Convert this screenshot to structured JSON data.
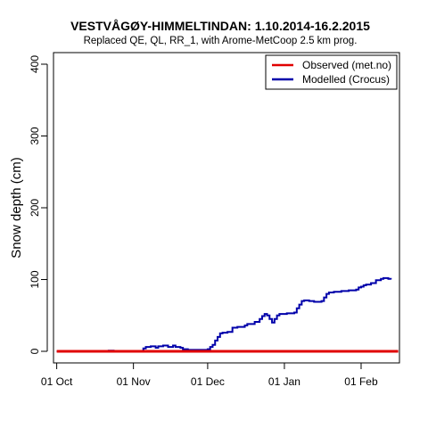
{
  "chart_data": {
    "type": "line",
    "title": "VESTVÅGØY-HIMMELTINDAN: 1.10.2014-16.2.2015",
    "subtitle": "Replaced QE, QL, RR_1,  with Arome-MetCoop 2.5 km prog.",
    "xlabel": "",
    "ylabel": "Snow depth (cm)",
    "ylim": [
      0,
      400
    ],
    "y_ticks": [
      0,
      100,
      200,
      300,
      400
    ],
    "x_unit": "days since 2014-10-01",
    "xlim": [
      -1.3,
      138.5
    ],
    "x_ticks": [
      {
        "label": "01 Oct",
        "x": 0
      },
      {
        "label": "01 Nov",
        "x": 31
      },
      {
        "label": "01 Dec",
        "x": 61
      },
      {
        "label": "01 Jan",
        "x": 92
      },
      {
        "label": "01 Feb",
        "x": 123
      }
    ],
    "legend": {
      "position": "top-right",
      "entries": [
        {
          "label": "Observed (met.no)",
          "color": "#e00000"
        },
        {
          "label": "Modelled (Crocus)",
          "color": "#0000aa"
        }
      ]
    },
    "series": [
      {
        "name": "Observed (met.no)",
        "color": "#e00000",
        "step": false,
        "points": [
          [
            0,
            0
          ],
          [
            138,
            0
          ]
        ]
      },
      {
        "name": "Modelled (Crocus)",
        "color": "#0000aa",
        "step": true,
        "points": [
          [
            0,
            0
          ],
          [
            20,
            0
          ],
          [
            21,
            1
          ],
          [
            23,
            0
          ],
          [
            34,
            0
          ],
          [
            35,
            4
          ],
          [
            36,
            6
          ],
          [
            38,
            7
          ],
          [
            40,
            5
          ],
          [
            41,
            7
          ],
          [
            43,
            8
          ],
          [
            45,
            6
          ],
          [
            47,
            8
          ],
          [
            48,
            6
          ],
          [
            50,
            5
          ],
          [
            51,
            3
          ],
          [
            53,
            2
          ],
          [
            60,
            2
          ],
          [
            61,
            3
          ],
          [
            62,
            6
          ],
          [
            63,
            9
          ],
          [
            64,
            15
          ],
          [
            65,
            20
          ],
          [
            66,
            25
          ],
          [
            67,
            26
          ],
          [
            69,
            27
          ],
          [
            71,
            33
          ],
          [
            73,
            34
          ],
          [
            76,
            36
          ],
          [
            77,
            38
          ],
          [
            80,
            41
          ],
          [
            82,
            45
          ],
          [
            83,
            49
          ],
          [
            84,
            52
          ],
          [
            85,
            50
          ],
          [
            86,
            45
          ],
          [
            87,
            40
          ],
          [
            88,
            45
          ],
          [
            89,
            50
          ],
          [
            90,
            52
          ],
          [
            93,
            53
          ],
          [
            96,
            54
          ],
          [
            97,
            60
          ],
          [
            98,
            65
          ],
          [
            99,
            70
          ],
          [
            100,
            71
          ],
          [
            102,
            70
          ],
          [
            104,
            69
          ],
          [
            107,
            70
          ],
          [
            108,
            75
          ],
          [
            109,
            80
          ],
          [
            110,
            82
          ],
          [
            112,
            83
          ],
          [
            115,
            84
          ],
          [
            117,
            84
          ],
          [
            118,
            85
          ],
          [
            121,
            86
          ],
          [
            122,
            89
          ],
          [
            123,
            90
          ],
          [
            124,
            92
          ],
          [
            125,
            93
          ],
          [
            127,
            95
          ],
          [
            129,
            99
          ],
          [
            131,
            101
          ],
          [
            132,
            102
          ],
          [
            134,
            101
          ],
          [
            135,
            100
          ]
        ]
      }
    ]
  }
}
